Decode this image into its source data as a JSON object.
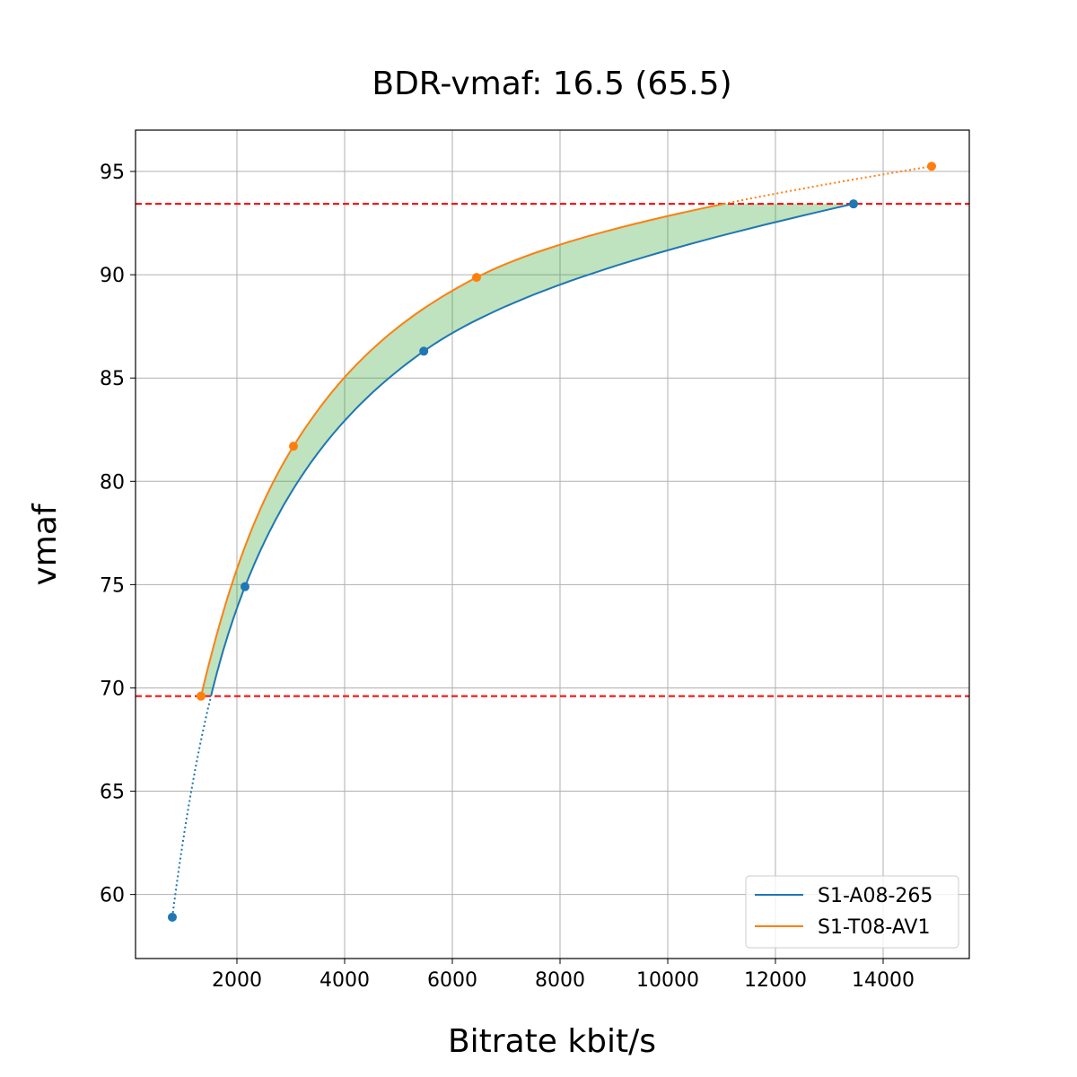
{
  "chart_data": {
    "type": "line",
    "title": "BDR-vmaf: 16.5 (65.5)",
    "xlabel": "Bitrate kbit/s",
    "ylabel": "vmaf",
    "xlim": [
      117,
      15600
    ],
    "ylim": [
      56.9,
      97.0
    ],
    "xticks": [
      2000,
      4000,
      6000,
      8000,
      10000,
      12000,
      14000
    ],
    "yticks": [
      60,
      65,
      70,
      75,
      80,
      85,
      90,
      95
    ],
    "grid": true,
    "legend_position": "bottom-right",
    "series": [
      {
        "name": "S1-A08-265",
        "color": "#1f77b4",
        "x": [
          800,
          2150,
          5470,
          13450
        ],
        "y": [
          58.9,
          74.9,
          86.3,
          93.43
        ]
      },
      {
        "name": "S1-T08-AV1",
        "color": "#ff7f0e",
        "x": [
          1333,
          3050,
          6450,
          14900
        ],
        "y": [
          69.6,
          81.7,
          89.87,
          95.25
        ]
      }
    ],
    "hlines": [
      {
        "y": 93.43,
        "color": "#ff0000",
        "style": "dashed"
      },
      {
        "y": 69.6,
        "color": "#ff0000",
        "style": "dashed"
      }
    ],
    "fill": {
      "between": [
        69.6,
        93.43
      ],
      "color": "#2ca02c",
      "opacity": 0.3
    }
  }
}
